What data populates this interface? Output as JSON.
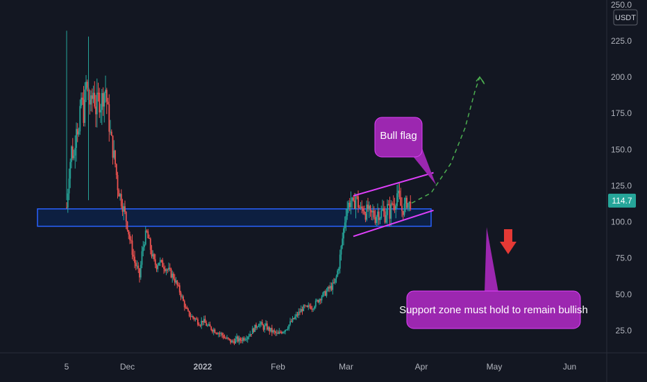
{
  "chart_data": {
    "type": "candlestick",
    "currency": "USDT",
    "ylim": [
      0,
      250
    ],
    "y_ticks": [
      "25.0",
      "50.0",
      "75.0",
      "100.0",
      "125.0",
      "150.0",
      "175.0",
      "200.0",
      "225.0",
      "250.0"
    ],
    "y_tick_values": [
      25,
      50,
      75,
      100,
      125,
      150,
      175,
      200,
      225,
      250
    ],
    "x_ticks": [
      {
        "label": "5",
        "bold": false,
        "day": 0
      },
      {
        "label": "Dec",
        "bold": false,
        "day": 25
      },
      {
        "label": "2022",
        "bold": true,
        "day": 56
      },
      {
        "label": "Feb",
        "bold": false,
        "day": 87
      },
      {
        "label": "Mar",
        "bold": false,
        "day": 115
      },
      {
        "label": "Apr",
        "bold": false,
        "day": 146
      },
      {
        "label": "May",
        "bold": false,
        "day": 176
      },
      {
        "label": "Jun",
        "bold": false,
        "day": 207
      }
    ],
    "xlim_days": [
      -5,
      235
    ],
    "last_price": "114.7",
    "last_price_value": 114.7,
    "close_path": [
      [
        0,
        110
      ],
      [
        1,
        135
      ],
      [
        2,
        150
      ],
      [
        3,
        145
      ],
      [
        4,
        170
      ],
      [
        5,
        160
      ],
      [
        6,
        185
      ],
      [
        7,
        175
      ],
      [
        8,
        195
      ],
      [
        9,
        185
      ],
      [
        10,
        180
      ],
      [
        11,
        190
      ],
      [
        12,
        178
      ],
      [
        13,
        185
      ],
      [
        14,
        182
      ],
      [
        15,
        188
      ],
      [
        16,
        192
      ],
      [
        17,
        175
      ],
      [
        18,
        160
      ],
      [
        19,
        150
      ],
      [
        20,
        140
      ],
      [
        21,
        125
      ],
      [
        22,
        118
      ],
      [
        23,
        112
      ],
      [
        24,
        105
      ],
      [
        25,
        98
      ],
      [
        26,
        88
      ],
      [
        27,
        80
      ],
      [
        28,
        72
      ],
      [
        29,
        68
      ],
      [
        30,
        62
      ],
      [
        31,
        78
      ],
      [
        32,
        88
      ],
      [
        33,
        92
      ],
      [
        34,
        85
      ],
      [
        35,
        78
      ],
      [
        36,
        72
      ],
      [
        37,
        70
      ],
      [
        38,
        73
      ],
      [
        39,
        71
      ],
      [
        40,
        70
      ],
      [
        41,
        68
      ],
      [
        42,
        66
      ],
      [
        43,
        64
      ],
      [
        44,
        62
      ],
      [
        45,
        58
      ],
      [
        46,
        54
      ],
      [
        47,
        50
      ],
      [
        48,
        45
      ],
      [
        49,
        40
      ],
      [
        50,
        37
      ],
      [
        51,
        35
      ],
      [
        52,
        34
      ],
      [
        53,
        33
      ],
      [
        54,
        31
      ],
      [
        55,
        30
      ],
      [
        56,
        32
      ],
      [
        57,
        30
      ],
      [
        58,
        28
      ],
      [
        59,
        27
      ],
      [
        60,
        26
      ],
      [
        61,
        25
      ],
      [
        62,
        24
      ],
      [
        63,
        23
      ],
      [
        64,
        22
      ],
      [
        65,
        20
      ],
      [
        66,
        19
      ],
      [
        67,
        18
      ],
      [
        68,
        17
      ],
      [
        69,
        18
      ],
      [
        70,
        19
      ],
      [
        71,
        18
      ],
      [
        72,
        19
      ],
      [
        73,
        20
      ],
      [
        74,
        21
      ],
      [
        75,
        22
      ],
      [
        76,
        24
      ],
      [
        77,
        26
      ],
      [
        78,
        28
      ],
      [
        79,
        30
      ],
      [
        80,
        29
      ],
      [
        81,
        27
      ],
      [
        82,
        28
      ],
      [
        83,
        26
      ],
      [
        84,
        25
      ],
      [
        85,
        24
      ],
      [
        86,
        23
      ],
      [
        87,
        22
      ],
      [
        88,
        24
      ],
      [
        89,
        25
      ],
      [
        90,
        26
      ],
      [
        91,
        28
      ],
      [
        92,
        30
      ],
      [
        93,
        32
      ],
      [
        94,
        34
      ],
      [
        95,
        36
      ],
      [
        96,
        38
      ],
      [
        97,
        40
      ],
      [
        98,
        41
      ],
      [
        99,
        40
      ],
      [
        100,
        42
      ],
      [
        101,
        41
      ],
      [
        102,
        43
      ],
      [
        103,
        45
      ],
      [
        104,
        47
      ],
      [
        105,
        49
      ],
      [
        106,
        50
      ],
      [
        107,
        52
      ],
      [
        108,
        54
      ],
      [
        109,
        55
      ],
      [
        110,
        57
      ],
      [
        111,
        62
      ],
      [
        112,
        70
      ],
      [
        113,
        82
      ],
      [
        114,
        95
      ],
      [
        115,
        108
      ],
      [
        116,
        112
      ],
      [
        117,
        115
      ],
      [
        118,
        110
      ],
      [
        119,
        118
      ],
      [
        120,
        112
      ],
      [
        121,
        108
      ],
      [
        122,
        110
      ],
      [
        123,
        106
      ],
      [
        124,
        109
      ],
      [
        125,
        104
      ],
      [
        126,
        106
      ],
      [
        127,
        103
      ],
      [
        128,
        107
      ],
      [
        129,
        105
      ],
      [
        130,
        108
      ],
      [
        131,
        104
      ],
      [
        132,
        110
      ],
      [
        133,
        106
      ],
      [
        134,
        113
      ],
      [
        135,
        112
      ],
      [
        136,
        120
      ],
      [
        137,
        114
      ],
      [
        138,
        108
      ],
      [
        139,
        110
      ],
      [
        140,
        114
      ],
      [
        141,
        112
      ],
      [
        142,
        115
      ]
    ],
    "support_zone": {
      "y_low": 97,
      "y_high": 109,
      "day_start": -12,
      "day_end": 150
    },
    "bull_flag_channel": {
      "upper": [
        [
          118,
          118
        ],
        [
          151,
          134
        ]
      ],
      "lower": [
        [
          118,
          90
        ],
        [
          151,
          108
        ]
      ]
    },
    "projection_path": [
      [
        142,
        113
      ],
      [
        150,
        120
      ],
      [
        158,
        140
      ],
      [
        164,
        165
      ],
      [
        168,
        190
      ],
      [
        170,
        200
      ],
      [
        172,
        195
      ]
    ],
    "annotations": [
      {
        "id": "bull-flag",
        "text": "Bull flag"
      },
      {
        "id": "support",
        "text": "Support zone must hold to remain bullish"
      }
    ],
    "colors": {
      "background": "#131722",
      "up": "#26a69a",
      "down": "#ef5350",
      "support_fill": "#0d2146",
      "support_stroke": "#2962ff",
      "channel": "#e040fb",
      "callout": "#9c27b0",
      "projection": "#4caf50",
      "arrow": "#e53935",
      "price_tag": "#26a69a",
      "axis_text": "#b2b5be"
    }
  }
}
